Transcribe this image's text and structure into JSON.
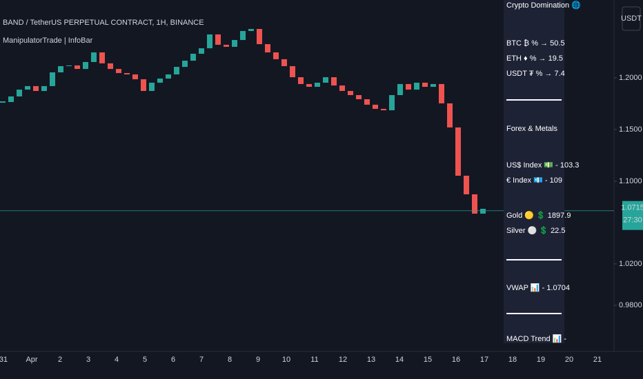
{
  "header": {
    "title": "BAND / TetherUS PERPETUAL CONTRACT, 1H, BINANCE",
    "indicator": "ManipulatorTrade | InfoBar",
    "currency_button": "USDT"
  },
  "chart_data": {
    "type": "candlestick",
    "x_labels": [
      "31",
      "Apr",
      "2",
      "3",
      "4",
      "5",
      "6",
      "7",
      "8",
      "9",
      "10",
      "11",
      "12",
      "13",
      "14",
      "15",
      "16",
      "17",
      "18",
      "19",
      "20",
      "21"
    ],
    "closes": [
      1.1766,
      1.182,
      1.1886,
      1.192,
      1.1873,
      1.192,
      1.2053,
      1.2113,
      1.212,
      1.2086,
      1.2153,
      1.2246,
      1.214,
      1.2086,
      1.2046,
      1.2033,
      1.1986,
      1.1873,
      1.1953,
      1.1993,
      1.2033,
      1.2106,
      1.2166,
      1.2233,
      1.2286,
      1.242,
      1.232,
      1.23,
      1.2366,
      1.2453,
      1.2473,
      1.2326,
      1.2246,
      1.218,
      1.2113,
      1.2006,
      1.194,
      1.1913,
      1.1953,
      1.2006,
      1.1926,
      1.1873,
      1.1833,
      1.1793,
      1.174,
      1.17,
      1.1686,
      1.1833,
      1.194,
      1.1886,
      1.1953,
      1.1913,
      1.194,
      1.1753,
      1.152,
      1.1053,
      1.0873,
      1.0686,
      1.0733
    ],
    "up_color": "#26a69a",
    "down_color": "#ef5350",
    "current_price": {
      "value": 1.0715,
      "label": "1.0715"
    },
    "countdown": "27:30",
    "ylim": [
      0.9353,
      1.2753
    ],
    "yticks": [
      {
        "value": 1.2,
        "label": "1.2000"
      },
      {
        "value": 1.15,
        "label": "1.1500"
      },
      {
        "value": 1.1,
        "label": "1.1000"
      },
      {
        "value": 1.02,
        "label": "1.0200"
      },
      {
        "value": 0.98,
        "label": "0.9800"
      }
    ]
  },
  "info_panel": {
    "crypto_title": "Crypto Domination 🌐",
    "crypto": [
      "BTC ₿ % → 50.5",
      "ETH ♦ % → 19.5",
      "USDT ₮ % → 7.4"
    ],
    "forex_title": "Forex & Metals",
    "forex": [
      "US$ Index 💵 - 103.3",
      "€ Index 💶 - 109"
    ],
    "metals": [
      "Gold 🟡 💲 1897.9",
      "Silver ⚪ 💲 22.5"
    ],
    "vwap": "VWAP 📊 - 1.0704",
    "macd": "MACD Trend 📊 -"
  }
}
